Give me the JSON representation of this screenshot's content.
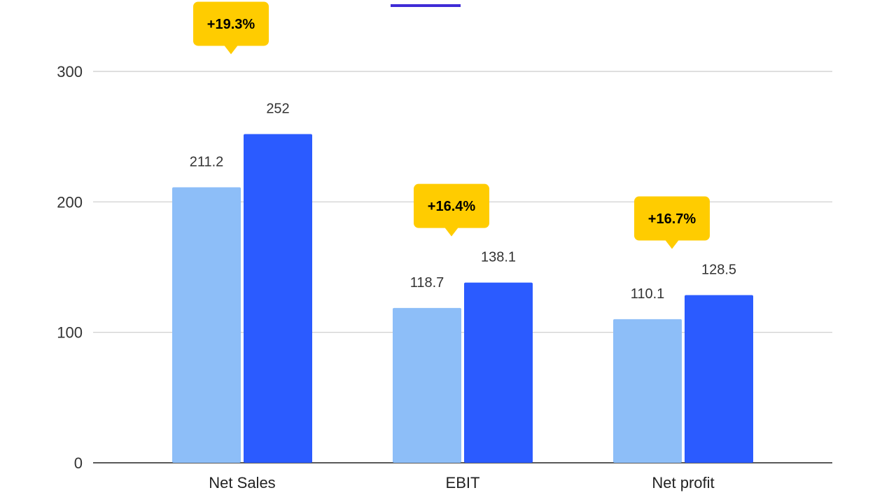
{
  "chart_data": {
    "type": "bar",
    "title": "",
    "xlabel": "",
    "ylabel": "",
    "categories": [
      "Net Sales",
      "EBIT",
      "Net profit"
    ],
    "series": [
      {
        "values": [
          211.2,
          118.7,
          110.1
        ],
        "color": "#8DBEF8"
      },
      {
        "values": [
          252,
          138.1,
          128.5
        ],
        "color": "#2B5BFF"
      }
    ],
    "data_labels": [
      [
        "211.2",
        "118.7",
        "110.1"
      ],
      [
        "252",
        "138.1",
        "128.5"
      ]
    ],
    "growth_badges": [
      "+19.3%",
      "+16.4%",
      "+16.7%"
    ],
    "badge_color": "#FFCC00",
    "accent_bar_color": "#3F2BD6",
    "ylim": [
      0,
      300
    ],
    "yticks": [
      0,
      100,
      200,
      300
    ],
    "grid": true,
    "legend": "none"
  }
}
